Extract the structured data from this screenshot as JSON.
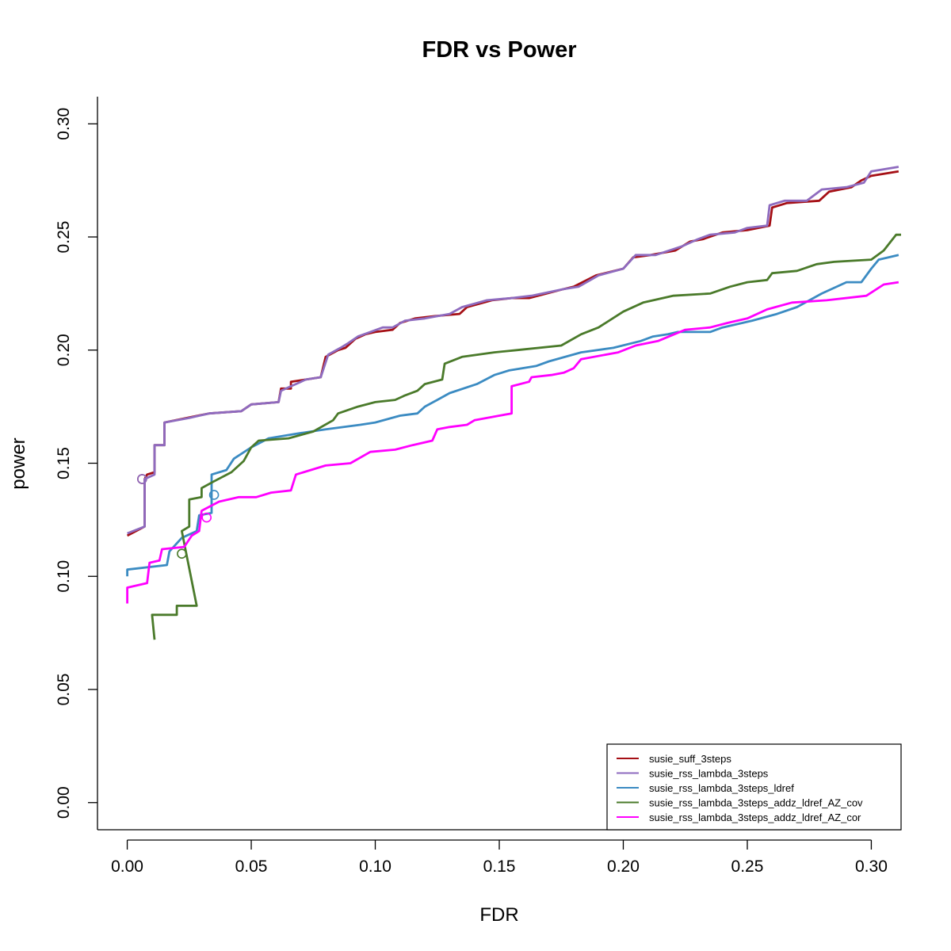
{
  "chart_data": {
    "type": "line",
    "title": "FDR vs Power",
    "xlabel": "FDR",
    "ylabel": "power",
    "xlim": [
      -0.012,
      0.312
    ],
    "ylim": [
      -0.012,
      0.312
    ],
    "x_ticks": [
      0.0,
      0.05,
      0.1,
      0.15,
      0.2,
      0.25,
      0.3
    ],
    "x_tick_labels": [
      "0.00",
      "0.05",
      "0.10",
      "0.15",
      "0.20",
      "0.25",
      "0.30"
    ],
    "y_ticks": [
      0.0,
      0.05,
      0.1,
      0.15,
      0.2,
      0.25,
      0.3
    ],
    "y_tick_labels": [
      "0.00",
      "0.05",
      "0.10",
      "0.15",
      "0.20",
      "0.25",
      "0.30"
    ],
    "legend_position": "bottom-right",
    "series": [
      {
        "name": "susie_suff_3steps",
        "color": "#a50f15",
        "marker": [
          0.006,
          0.143
        ],
        "points": [
          [
            0.0,
            0.118
          ],
          [
            0.007,
            0.122
          ],
          [
            0.007,
            0.143
          ],
          [
            0.008,
            0.145
          ],
          [
            0.011,
            0.146
          ],
          [
            0.011,
            0.158
          ],
          [
            0.015,
            0.158
          ],
          [
            0.015,
            0.168
          ],
          [
            0.024,
            0.17
          ],
          [
            0.033,
            0.172
          ],
          [
            0.046,
            0.173
          ],
          [
            0.05,
            0.176
          ],
          [
            0.061,
            0.177
          ],
          [
            0.062,
            0.183
          ],
          [
            0.066,
            0.183
          ],
          [
            0.066,
            0.186
          ],
          [
            0.072,
            0.187
          ],
          [
            0.078,
            0.188
          ],
          [
            0.08,
            0.197
          ],
          [
            0.085,
            0.2
          ],
          [
            0.088,
            0.201
          ],
          [
            0.092,
            0.205
          ],
          [
            0.096,
            0.207
          ],
          [
            0.1,
            0.208
          ],
          [
            0.107,
            0.209
          ],
          [
            0.11,
            0.212
          ],
          [
            0.116,
            0.214
          ],
          [
            0.124,
            0.215
          ],
          [
            0.134,
            0.216
          ],
          [
            0.137,
            0.219
          ],
          [
            0.147,
            0.222
          ],
          [
            0.155,
            0.223
          ],
          [
            0.162,
            0.223
          ],
          [
            0.176,
            0.227
          ],
          [
            0.18,
            0.228
          ],
          [
            0.189,
            0.233
          ],
          [
            0.2,
            0.236
          ],
          [
            0.204,
            0.241
          ],
          [
            0.211,
            0.242
          ],
          [
            0.221,
            0.244
          ],
          [
            0.227,
            0.248
          ],
          [
            0.232,
            0.249
          ],
          [
            0.24,
            0.252
          ],
          [
            0.25,
            0.253
          ],
          [
            0.259,
            0.255
          ],
          [
            0.26,
            0.263
          ],
          [
            0.266,
            0.265
          ],
          [
            0.279,
            0.266
          ],
          [
            0.283,
            0.27
          ],
          [
            0.292,
            0.272
          ],
          [
            0.296,
            0.275
          ],
          [
            0.3,
            0.277
          ],
          [
            0.311,
            0.279
          ]
        ]
      },
      {
        "name": "susie_rss_lambda_3steps",
        "color": "#8e6bbf",
        "marker": [
          0.006,
          0.143
        ],
        "points": [
          [
            0.0,
            0.119
          ],
          [
            0.007,
            0.122
          ],
          [
            0.007,
            0.143
          ],
          [
            0.011,
            0.145
          ],
          [
            0.011,
            0.158
          ],
          [
            0.015,
            0.158
          ],
          [
            0.015,
            0.168
          ],
          [
            0.025,
            0.17
          ],
          [
            0.033,
            0.172
          ],
          [
            0.046,
            0.173
          ],
          [
            0.05,
            0.176
          ],
          [
            0.061,
            0.177
          ],
          [
            0.062,
            0.182
          ],
          [
            0.066,
            0.184
          ],
          [
            0.068,
            0.185
          ],
          [
            0.072,
            0.187
          ],
          [
            0.078,
            0.188
          ],
          [
            0.081,
            0.198
          ],
          [
            0.086,
            0.201
          ],
          [
            0.089,
            0.203
          ],
          [
            0.093,
            0.206
          ],
          [
            0.098,
            0.208
          ],
          [
            0.103,
            0.21
          ],
          [
            0.107,
            0.21
          ],
          [
            0.112,
            0.213
          ],
          [
            0.12,
            0.214
          ],
          [
            0.13,
            0.216
          ],
          [
            0.135,
            0.219
          ],
          [
            0.145,
            0.222
          ],
          [
            0.155,
            0.223
          ],
          [
            0.163,
            0.224
          ],
          [
            0.176,
            0.227
          ],
          [
            0.182,
            0.228
          ],
          [
            0.19,
            0.233
          ],
          [
            0.2,
            0.236
          ],
          [
            0.205,
            0.242
          ],
          [
            0.213,
            0.242
          ],
          [
            0.224,
            0.246
          ],
          [
            0.23,
            0.249
          ],
          [
            0.235,
            0.251
          ],
          [
            0.245,
            0.252
          ],
          [
            0.25,
            0.254
          ],
          [
            0.258,
            0.255
          ],
          [
            0.259,
            0.264
          ],
          [
            0.265,
            0.266
          ],
          [
            0.274,
            0.266
          ],
          [
            0.28,
            0.271
          ],
          [
            0.29,
            0.272
          ],
          [
            0.297,
            0.274
          ],
          [
            0.3,
            0.279
          ],
          [
            0.311,
            0.281
          ]
        ]
      },
      {
        "name": "susie_rss_lambda_3steps_ldref",
        "color": "#3b8bc2",
        "marker": [
          0.035,
          0.136
        ],
        "points": [
          [
            0.0,
            0.1
          ],
          [
            0.0,
            0.103
          ],
          [
            0.016,
            0.105
          ],
          [
            0.017,
            0.111
          ],
          [
            0.022,
            0.117
          ],
          [
            0.028,
            0.12
          ],
          [
            0.029,
            0.127
          ],
          [
            0.034,
            0.128
          ],
          [
            0.034,
            0.145
          ],
          [
            0.04,
            0.147
          ],
          [
            0.043,
            0.152
          ],
          [
            0.05,
            0.157
          ],
          [
            0.057,
            0.161
          ],
          [
            0.068,
            0.163
          ],
          [
            0.08,
            0.165
          ],
          [
            0.094,
            0.167
          ],
          [
            0.1,
            0.168
          ],
          [
            0.11,
            0.171
          ],
          [
            0.117,
            0.172
          ],
          [
            0.12,
            0.175
          ],
          [
            0.125,
            0.178
          ],
          [
            0.13,
            0.181
          ],
          [
            0.141,
            0.185
          ],
          [
            0.148,
            0.189
          ],
          [
            0.154,
            0.191
          ],
          [
            0.165,
            0.193
          ],
          [
            0.17,
            0.195
          ],
          [
            0.183,
            0.199
          ],
          [
            0.196,
            0.201
          ],
          [
            0.207,
            0.204
          ],
          [
            0.212,
            0.206
          ],
          [
            0.218,
            0.207
          ],
          [
            0.222,
            0.208
          ],
          [
            0.235,
            0.208
          ],
          [
            0.24,
            0.21
          ],
          [
            0.252,
            0.213
          ],
          [
            0.262,
            0.216
          ],
          [
            0.27,
            0.219
          ],
          [
            0.28,
            0.225
          ],
          [
            0.29,
            0.23
          ],
          [
            0.296,
            0.23
          ],
          [
            0.3,
            0.236
          ],
          [
            0.303,
            0.24
          ],
          [
            0.311,
            0.242
          ]
        ]
      },
      {
        "name": "susie_rss_lambda_3steps_addz_ldref_AZ_cov",
        "color": "#4a7a2a",
        "marker": [
          0.022,
          0.11
        ],
        "points": [
          [
            0.011,
            0.072
          ],
          [
            0.01,
            0.083
          ],
          [
            0.02,
            0.083
          ],
          [
            0.02,
            0.087
          ],
          [
            0.028,
            0.087
          ],
          [
            0.022,
            0.12
          ],
          [
            0.025,
            0.122
          ],
          [
            0.025,
            0.134
          ],
          [
            0.03,
            0.135
          ],
          [
            0.03,
            0.139
          ],
          [
            0.035,
            0.142
          ],
          [
            0.042,
            0.146
          ],
          [
            0.047,
            0.151
          ],
          [
            0.05,
            0.157
          ],
          [
            0.053,
            0.16
          ],
          [
            0.065,
            0.161
          ],
          [
            0.075,
            0.164
          ],
          [
            0.083,
            0.169
          ],
          [
            0.085,
            0.172
          ],
          [
            0.093,
            0.175
          ],
          [
            0.1,
            0.177
          ],
          [
            0.108,
            0.178
          ],
          [
            0.112,
            0.18
          ],
          [
            0.117,
            0.182
          ],
          [
            0.12,
            0.185
          ],
          [
            0.127,
            0.187
          ],
          [
            0.128,
            0.194
          ],
          [
            0.135,
            0.197
          ],
          [
            0.148,
            0.199
          ],
          [
            0.157,
            0.2
          ],
          [
            0.175,
            0.202
          ],
          [
            0.183,
            0.207
          ],
          [
            0.19,
            0.21
          ],
          [
            0.2,
            0.217
          ],
          [
            0.208,
            0.221
          ],
          [
            0.22,
            0.224
          ],
          [
            0.235,
            0.225
          ],
          [
            0.243,
            0.228
          ],
          [
            0.25,
            0.23
          ],
          [
            0.258,
            0.231
          ],
          [
            0.26,
            0.234
          ],
          [
            0.27,
            0.235
          ],
          [
            0.278,
            0.238
          ],
          [
            0.285,
            0.239
          ],
          [
            0.3,
            0.24
          ],
          [
            0.305,
            0.244
          ],
          [
            0.31,
            0.251
          ],
          [
            0.312,
            0.251
          ]
        ]
      },
      {
        "name": "susie_rss_lambda_3steps_addz_ldref_AZ_cor",
        "color": "#ff00ff",
        "marker": [
          0.032,
          0.126
        ],
        "points": [
          [
            0.0,
            0.088
          ],
          [
            0.0,
            0.095
          ],
          [
            0.008,
            0.097
          ],
          [
            0.009,
            0.106
          ],
          [
            0.013,
            0.107
          ],
          [
            0.014,
            0.112
          ],
          [
            0.023,
            0.113
          ],
          [
            0.026,
            0.118
          ],
          [
            0.029,
            0.12
          ],
          [
            0.03,
            0.129
          ],
          [
            0.037,
            0.133
          ],
          [
            0.045,
            0.135
          ],
          [
            0.052,
            0.135
          ],
          [
            0.058,
            0.137
          ],
          [
            0.066,
            0.138
          ],
          [
            0.068,
            0.145
          ],
          [
            0.08,
            0.149
          ],
          [
            0.09,
            0.15
          ],
          [
            0.098,
            0.155
          ],
          [
            0.108,
            0.156
          ],
          [
            0.115,
            0.158
          ],
          [
            0.123,
            0.16
          ],
          [
            0.125,
            0.165
          ],
          [
            0.13,
            0.166
          ],
          [
            0.137,
            0.167
          ],
          [
            0.14,
            0.169
          ],
          [
            0.15,
            0.171
          ],
          [
            0.155,
            0.172
          ],
          [
            0.155,
            0.184
          ],
          [
            0.162,
            0.186
          ],
          [
            0.163,
            0.188
          ],
          [
            0.171,
            0.189
          ],
          [
            0.176,
            0.19
          ],
          [
            0.18,
            0.192
          ],
          [
            0.183,
            0.196
          ],
          [
            0.198,
            0.199
          ],
          [
            0.205,
            0.202
          ],
          [
            0.214,
            0.204
          ],
          [
            0.225,
            0.209
          ],
          [
            0.235,
            0.21
          ],
          [
            0.242,
            0.212
          ],
          [
            0.25,
            0.214
          ],
          [
            0.258,
            0.218
          ],
          [
            0.268,
            0.221
          ],
          [
            0.282,
            0.222
          ],
          [
            0.298,
            0.224
          ],
          [
            0.305,
            0.229
          ],
          [
            0.311,
            0.23
          ]
        ]
      }
    ]
  }
}
